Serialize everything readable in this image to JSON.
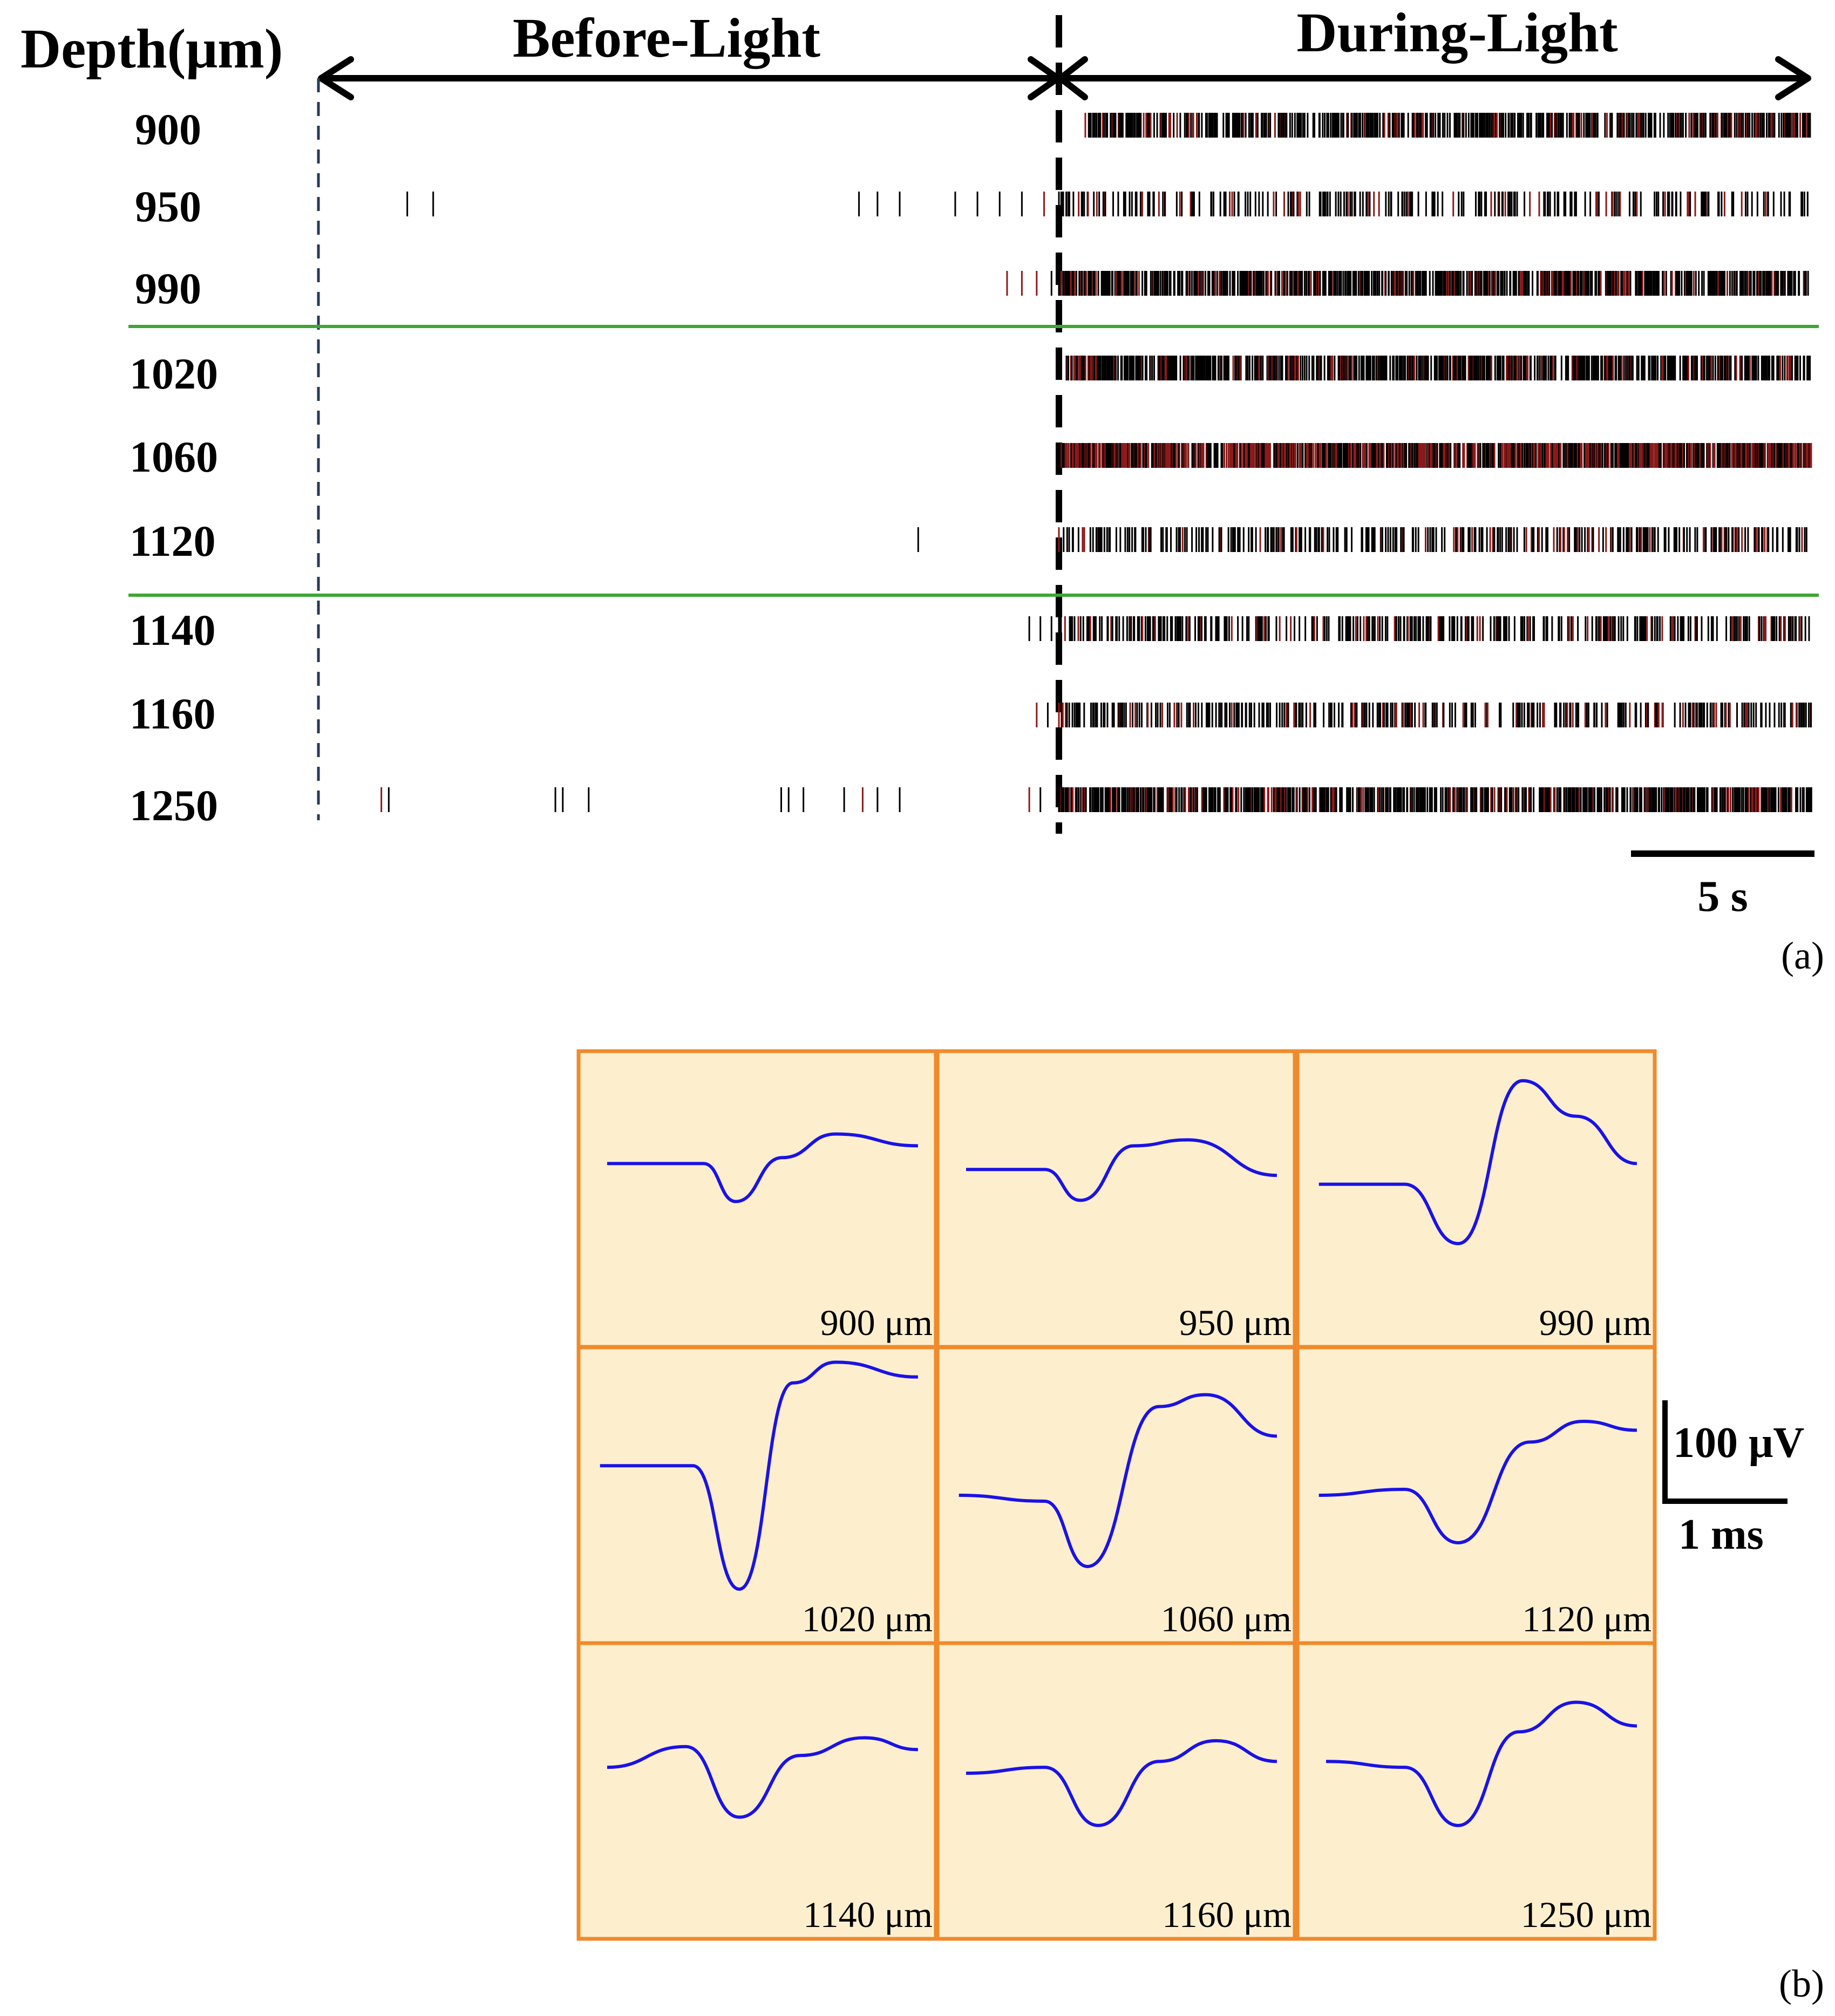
{
  "panel_a": {
    "axis_title": "Depth(μm)",
    "before_label": "Before-Light",
    "during_label": "During-Light",
    "scale_label": "5 s",
    "panel_tag": "(a)"
  },
  "panel_b": {
    "scale_v_label": "100 μV",
    "scale_t_label": "1 ms",
    "panel_tag": "(b)"
  },
  "colors": {
    "spike_black": "#000000",
    "spike_red": "#8b1a1a",
    "layer_divider": "#3fa535",
    "waveform": "#1a12e6",
    "tile_fill": "#fdefcd",
    "tile_border": "#f08a2c"
  },
  "chart_data": [
    {
      "type": "raster",
      "x_unit": "s",
      "light_onset_s": 20,
      "xlim": [
        0,
        40
      ],
      "rows": [
        {
          "depth": "900",
          "before_spikes_s": [],
          "during_density": "medium-high",
          "during_start_s": 20.7
        },
        {
          "depth": "950",
          "before_spikes_s": [
            2.4,
            3.1,
            14.6,
            15.1,
            15.7,
            17.2,
            17.8,
            18.4,
            19.0,
            19.6
          ],
          "during_density": "medium-sparse",
          "during_start_s": 20.0
        },
        {
          "depth": "990",
          "before_spikes_s": [
            18.6,
            19.0,
            19.4,
            19.8
          ],
          "during_density": "high",
          "during_start_s": 20.0
        },
        {
          "depth": "1020",
          "before_spikes_s": [],
          "during_density": "high",
          "during_start_s": 20.2
        },
        {
          "depth": "1060",
          "before_spikes_s": [],
          "during_density": "very-high",
          "during_start_s": 20.0
        },
        {
          "depth": "1120",
          "before_spikes_s": [
            16.2
          ],
          "during_density": "medium",
          "during_start_s": 20.0
        },
        {
          "depth": "1140",
          "before_spikes_s": [
            19.2,
            19.5,
            19.8
          ],
          "during_density": "medium",
          "during_start_s": 20.0
        },
        {
          "depth": "1160",
          "before_spikes_s": [
            19.4,
            19.7
          ],
          "during_density": "medium",
          "during_start_s": 20.0
        },
        {
          "depth": "1250",
          "before_spikes_s": [
            1.7,
            1.9,
            6.4,
            6.6,
            7.3,
            12.5,
            12.7,
            13.1,
            14.2,
            14.7,
            15.1,
            15.7,
            19.2,
            19.5
          ],
          "during_density": "high",
          "during_start_s": 20.0
        }
      ],
      "layer_dividers_between": [
        [
          "990",
          "1020"
        ],
        [
          "1120",
          "1140"
        ]
      ],
      "scale_bar_s": 5
    },
    {
      "type": "line",
      "x_unit": "ms",
      "y_unit": "μV",
      "waveforms": [
        {
          "label": "900 μm",
          "trough_uV": -80,
          "peak_uV": 30
        },
        {
          "label": "950 μm",
          "trough_uV": -65,
          "peak_uV": 45
        },
        {
          "label": "990 μm",
          "trough_uV": -125,
          "peak_uV": 100
        },
        {
          "label": "1020 μm",
          "trough_uV": -260,
          "peak_uV": 110
        },
        {
          "label": "1060 μm",
          "trough_uV": -150,
          "peak_uV": 105
        },
        {
          "label": "1120 μm",
          "trough_uV": -100,
          "peak_uV": 40
        },
        {
          "label": "1140 μm",
          "trough_uV": -105,
          "peak_uV": 35
        },
        {
          "label": "1160 μm",
          "trough_uV": -110,
          "peak_uV": 35
        },
        {
          "label": "1250 μm",
          "trough_uV": -135,
          "peak_uV": 90
        }
      ],
      "scale_bar": {
        "voltage_uV": 100,
        "time_ms": 1
      }
    }
  ]
}
